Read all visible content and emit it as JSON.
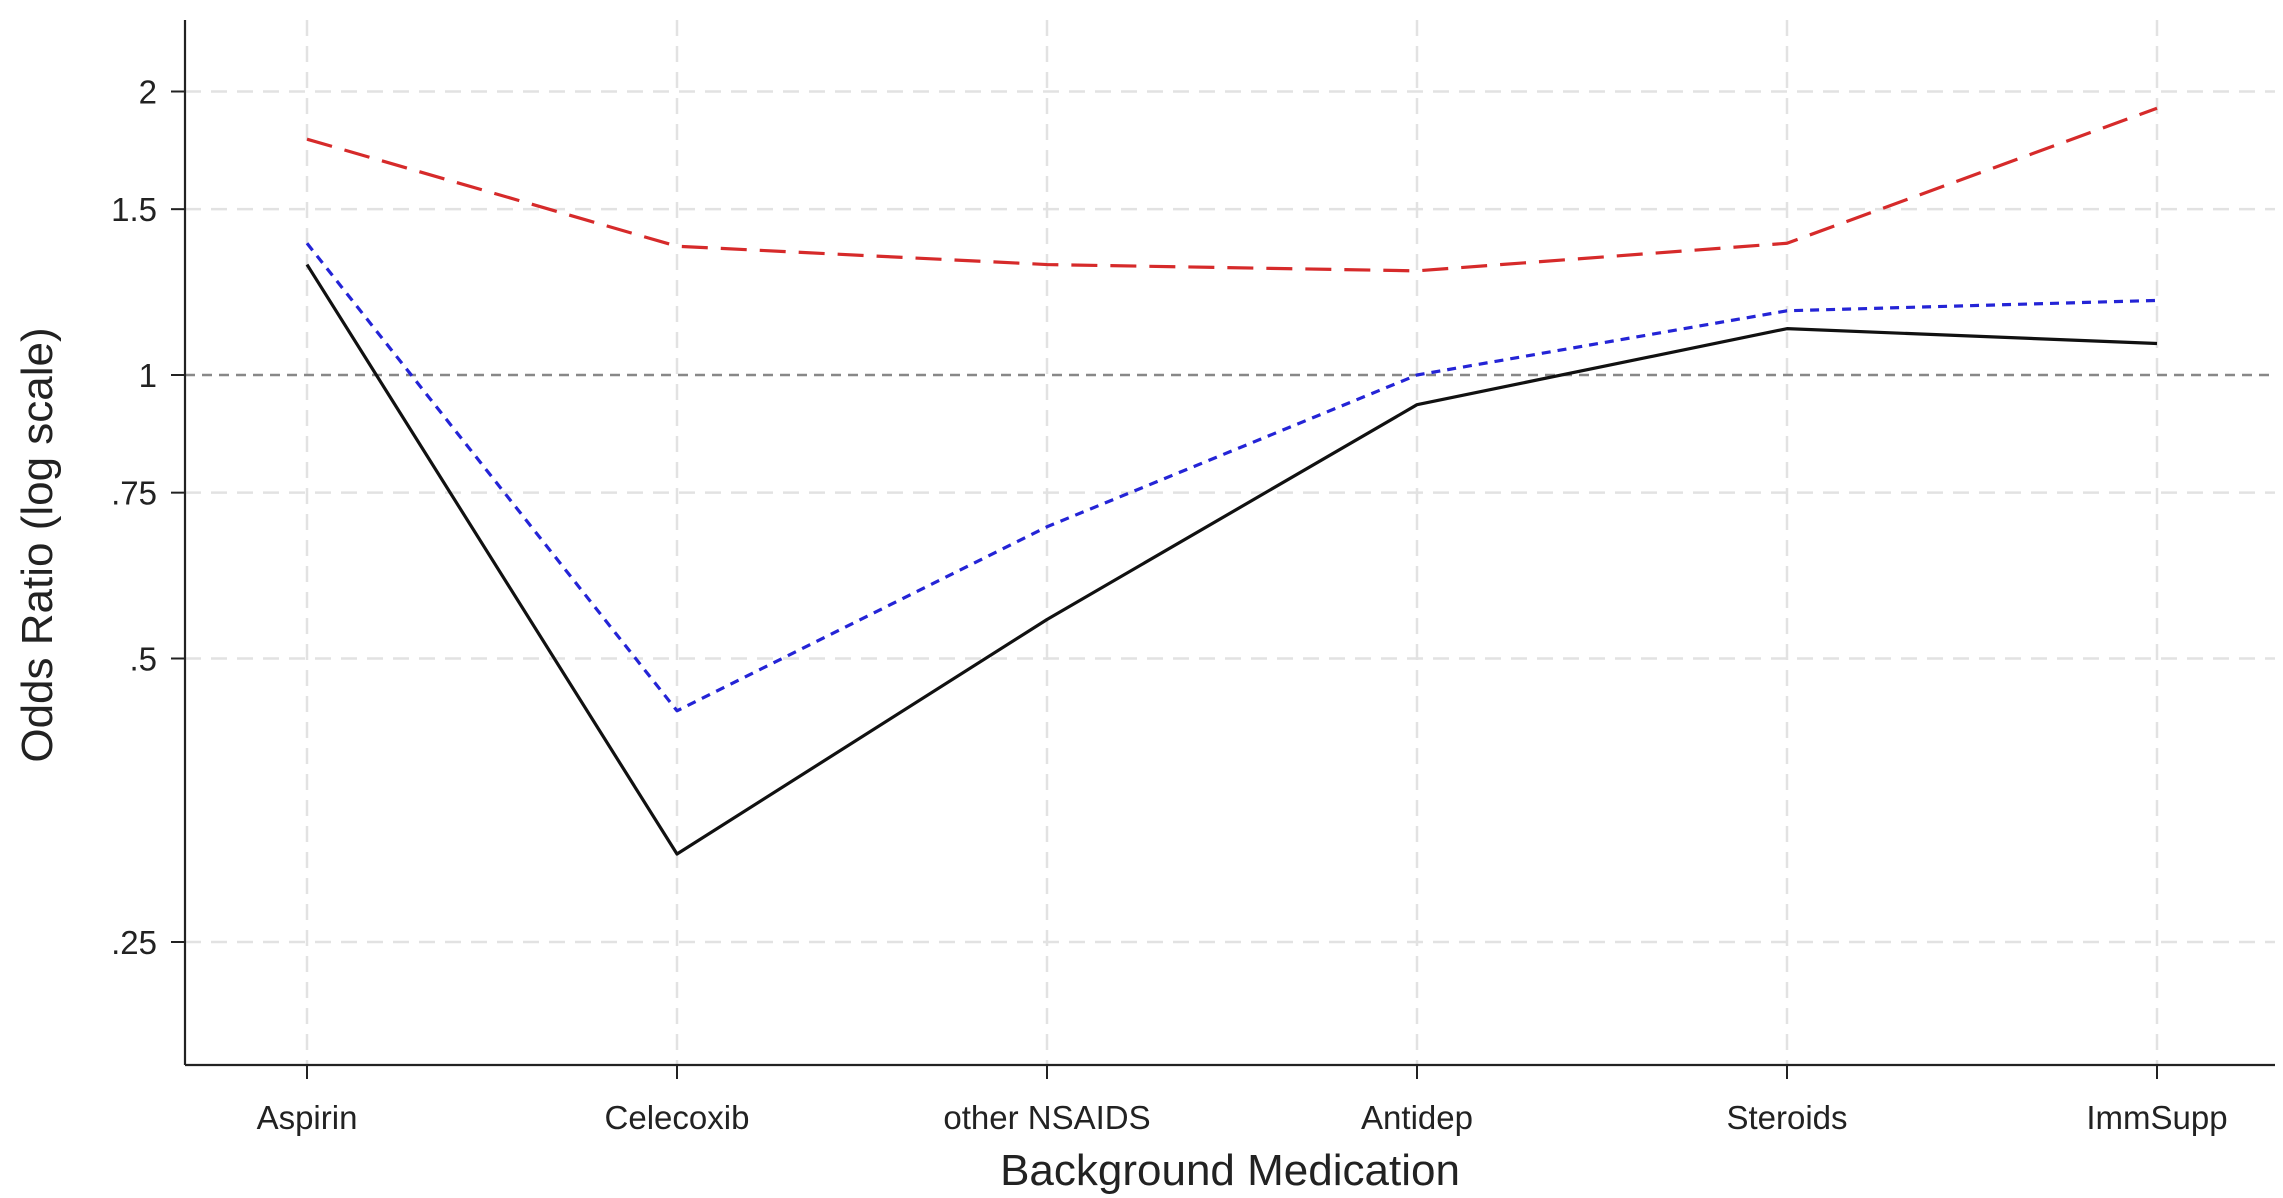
{
  "chart_data": {
    "type": "line",
    "title": "",
    "xlabel": "Background Medication",
    "ylabel": "Odds Ratio (log scale)",
    "y_scale": "log",
    "ylim": [
      0.18,
      2.35
    ],
    "grid": true,
    "legend": "none",
    "categories": [
      "Aspirin",
      "Celecoxib",
      "other NSAIDS",
      "Antidep",
      "Steroids",
      "ImmSupp"
    ],
    "y_ticks": [
      {
        "value": 0.25,
        "label": ".25"
      },
      {
        "value": 0.5,
        "label": ".5"
      },
      {
        "value": 0.75,
        "label": ".75"
      },
      {
        "value": 1,
        "label": "1"
      },
      {
        "value": 1.5,
        "label": "1.5"
      },
      {
        "value": 2,
        "label": "2"
      }
    ],
    "reference_line": {
      "value": 1,
      "color": "#888888",
      "style": "dashed"
    },
    "series": [
      {
        "values": [
          1.78,
          1.37,
          1.31,
          1.29,
          1.38,
          1.92
        ],
        "color": "#d62a2a",
        "style": "dashed"
      },
      {
        "values": [
          1.38,
          0.44,
          0.69,
          1.0,
          1.17,
          1.2
        ],
        "color": "#2424d6",
        "style": "dotted"
      },
      {
        "values": [
          1.31,
          0.31,
          0.55,
          0.93,
          1.12,
          1.08
        ],
        "color": "#111111",
        "style": "solid"
      }
    ]
  }
}
